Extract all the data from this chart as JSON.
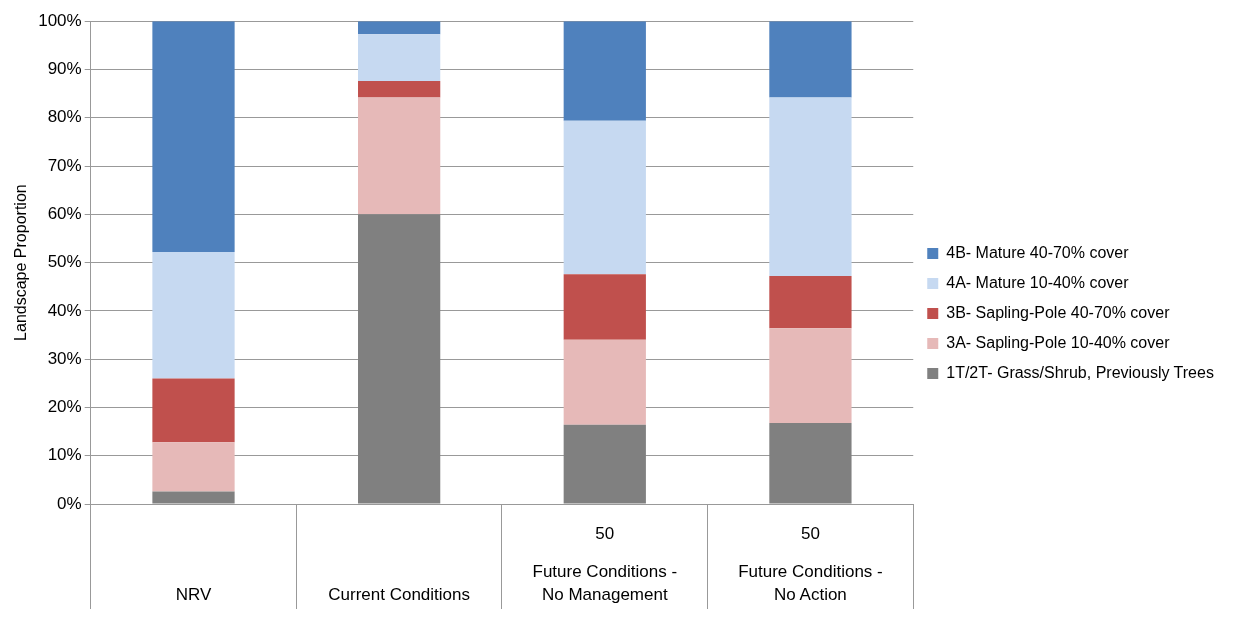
{
  "chart_data": {
    "type": "bar",
    "stacked": true,
    "ylabel": "Landscape Proportion",
    "categories": [
      "NRV",
      "Current Conditions",
      "50\nFuture Conditions -\nNo Management",
      "50\nFuture Conditions -\nNo Action"
    ],
    "series": [
      {
        "name": "1T/2T- Grass/Shrub, Previously Trees",
        "color": "#808080",
        "values": [
          2.6,
          60,
          16.4,
          16.8
        ]
      },
      {
        "name": "3A- Sapling-Pole 10-40% cover",
        "color": "#e6b9b8",
        "values": [
          10.2,
          24.2,
          17.6,
          19.6
        ]
      },
      {
        "name": "3B- Sapling-Pole 40-70% cover",
        "color": "#c0504d",
        "values": [
          13.2,
          3.4,
          13.6,
          10.8
        ]
      },
      {
        "name": "4A- Mature 10-40% cover",
        "color": "#c6d9f1",
        "values": [
          26.2,
          9.7,
          31.8,
          37
        ]
      },
      {
        "name": "4B- Mature 40-70% cover",
        "color": "#4f81bd",
        "values": [
          47.8,
          2.7,
          20.6,
          15.8
        ]
      }
    ],
    "ylim": [
      0,
      100
    ],
    "yticks": [
      {
        "value": 0,
        "label": "0%"
      },
      {
        "value": 10,
        "label": "10%"
      },
      {
        "value": 20,
        "label": "20%"
      },
      {
        "value": 30,
        "label": "30%"
      },
      {
        "value": 40,
        "label": "40%"
      },
      {
        "value": 50,
        "label": "50%"
      },
      {
        "value": 60,
        "label": "60%"
      },
      {
        "value": 70,
        "label": "70%"
      },
      {
        "value": 80,
        "label": "80%"
      },
      {
        "value": 90,
        "label": "90%"
      },
      {
        "value": 100,
        "label": "100%"
      }
    ],
    "grid": "y",
    "legend": "right"
  }
}
